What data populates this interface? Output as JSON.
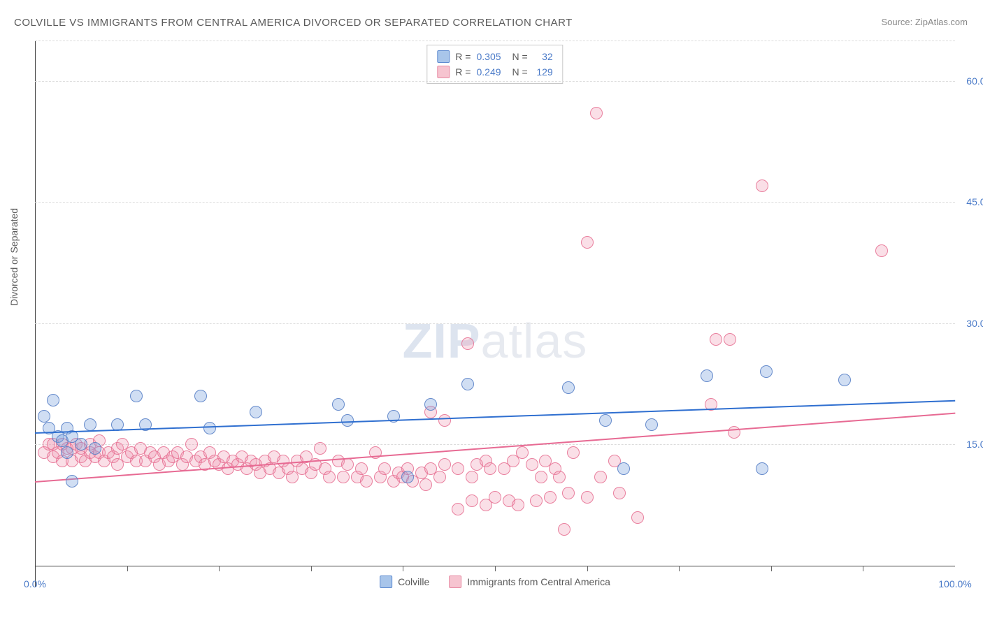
{
  "title": "COLVILLE VS IMMIGRANTS FROM CENTRAL AMERICA DIVORCED OR SEPARATED CORRELATION CHART",
  "source_prefix": "Source: ",
  "source_name": "ZipAtlas.com",
  "y_axis_label": "Divorced or Separated",
  "watermark_bold": "ZIP",
  "watermark_light": "atlas",
  "chart": {
    "xlim": [
      0,
      100
    ],
    "ylim": [
      0,
      65
    ],
    "x_ticks": [
      10,
      20,
      30,
      40,
      50,
      60,
      70,
      80,
      90
    ],
    "y_ticks": [
      {
        "v": 15,
        "label": "15.0%"
      },
      {
        "v": 30,
        "label": "30.0%"
      },
      {
        "v": 45,
        "label": "45.0%"
      },
      {
        "v": 60,
        "label": "60.0%"
      }
    ],
    "x_min_label": "0.0%",
    "x_max_label": "100.0%",
    "background_color": "#ffffff",
    "grid_color": "#dcdcdc",
    "axis_color": "#444444",
    "tick_label_color": "#4a7ac8",
    "marker_radius": 9,
    "series": {
      "blue": {
        "name": "Colville",
        "swatch_fill": "#a8c5ea",
        "swatch_stroke": "#5e8bd0",
        "marker_fill": "rgba(120,160,220,0.35)",
        "marker_stroke": "rgba(90,130,200,0.9)",
        "line_color": "#2f6fd0",
        "R": "0.305",
        "N": "32",
        "trend": {
          "x1": 0,
          "y1": 16.5,
          "x2": 100,
          "y2": 20.5
        },
        "points": [
          {
            "x": 1,
            "y": 18.5
          },
          {
            "x": 1.5,
            "y": 17
          },
          {
            "x": 2,
            "y": 20.5
          },
          {
            "x": 2.5,
            "y": 16
          },
          {
            "x": 3,
            "y": 15.5
          },
          {
            "x": 3.5,
            "y": 17
          },
          {
            "x": 3.5,
            "y": 14
          },
          {
            "x": 4,
            "y": 16
          },
          {
            "x": 4,
            "y": 10.5
          },
          {
            "x": 5,
            "y": 15
          },
          {
            "x": 6,
            "y": 17.5
          },
          {
            "x": 6.5,
            "y": 14.5
          },
          {
            "x": 9,
            "y": 17.5
          },
          {
            "x": 11,
            "y": 21
          },
          {
            "x": 12,
            "y": 17.5
          },
          {
            "x": 18,
            "y": 21
          },
          {
            "x": 19,
            "y": 17
          },
          {
            "x": 24,
            "y": 19
          },
          {
            "x": 33,
            "y": 20
          },
          {
            "x": 34,
            "y": 18
          },
          {
            "x": 39,
            "y": 18.5
          },
          {
            "x": 40.5,
            "y": 11
          },
          {
            "x": 43,
            "y": 20
          },
          {
            "x": 47,
            "y": 22.5
          },
          {
            "x": 58,
            "y": 22
          },
          {
            "x": 62,
            "y": 18
          },
          {
            "x": 64,
            "y": 12
          },
          {
            "x": 67,
            "y": 17.5
          },
          {
            "x": 73,
            "y": 23.5
          },
          {
            "x": 79,
            "y": 12
          },
          {
            "x": 79.5,
            "y": 24
          },
          {
            "x": 88,
            "y": 23
          }
        ]
      },
      "pink": {
        "name": "Immigrants from Central America",
        "swatch_fill": "#f6c4d0",
        "swatch_stroke": "#e78aa3",
        "marker_fill": "rgba(240,150,175,0.30)",
        "marker_stroke": "rgba(230,110,145,0.85)",
        "line_color": "#e76a93",
        "R": "0.249",
        "N": "129",
        "trend": {
          "x1": 0,
          "y1": 10.5,
          "x2": 100,
          "y2": 19
        },
        "points": [
          {
            "x": 1,
            "y": 14
          },
          {
            "x": 1.5,
            "y": 15
          },
          {
            "x": 2,
            "y": 13.5
          },
          {
            "x": 2,
            "y": 15
          },
          {
            "x": 2.5,
            "y": 14
          },
          {
            "x": 3,
            "y": 13
          },
          {
            "x": 3,
            "y": 15
          },
          {
            "x": 3.5,
            "y": 14.5
          },
          {
            "x": 4,
            "y": 13
          },
          {
            "x": 4,
            "y": 14.5
          },
          {
            "x": 4.5,
            "y": 15
          },
          {
            "x": 5,
            "y": 13.5
          },
          {
            "x": 5,
            "y": 14.5
          },
          {
            "x": 5.5,
            "y": 13
          },
          {
            "x": 6,
            "y": 14
          },
          {
            "x": 6,
            "y": 15
          },
          {
            "x": 6.5,
            "y": 13.5
          },
          {
            "x": 7,
            "y": 14
          },
          {
            "x": 7,
            "y": 15.5
          },
          {
            "x": 7.5,
            "y": 13
          },
          {
            "x": 8,
            "y": 14
          },
          {
            "x": 8.5,
            "y": 13.5
          },
          {
            "x": 9,
            "y": 14.5
          },
          {
            "x": 9,
            "y": 12.5
          },
          {
            "x": 9.5,
            "y": 15
          },
          {
            "x": 10,
            "y": 13.5
          },
          {
            "x": 10.5,
            "y": 14
          },
          {
            "x": 11,
            "y": 13
          },
          {
            "x": 11.5,
            "y": 14.5
          },
          {
            "x": 12,
            "y": 13
          },
          {
            "x": 12.5,
            "y": 14
          },
          {
            "x": 13,
            "y": 13.5
          },
          {
            "x": 13.5,
            "y": 12.5
          },
          {
            "x": 14,
            "y": 14
          },
          {
            "x": 14.5,
            "y": 13
          },
          {
            "x": 15,
            "y": 13.5
          },
          {
            "x": 15.5,
            "y": 14
          },
          {
            "x": 16,
            "y": 12.5
          },
          {
            "x": 16.5,
            "y": 13.5
          },
          {
            "x": 17,
            "y": 15
          },
          {
            "x": 17.5,
            "y": 13
          },
          {
            "x": 18,
            "y": 13.5
          },
          {
            "x": 18.5,
            "y": 12.5
          },
          {
            "x": 19,
            "y": 14
          },
          {
            "x": 19.5,
            "y": 13
          },
          {
            "x": 20,
            "y": 12.5
          },
          {
            "x": 20.5,
            "y": 13.5
          },
          {
            "x": 21,
            "y": 12
          },
          {
            "x": 21.5,
            "y": 13
          },
          {
            "x": 22,
            "y": 12.5
          },
          {
            "x": 22.5,
            "y": 13.5
          },
          {
            "x": 23,
            "y": 12
          },
          {
            "x": 23.5,
            "y": 13
          },
          {
            "x": 24,
            "y": 12.5
          },
          {
            "x": 24.5,
            "y": 11.5
          },
          {
            "x": 25,
            "y": 13
          },
          {
            "x": 25.5,
            "y": 12
          },
          {
            "x": 26,
            "y": 13.5
          },
          {
            "x": 26.5,
            "y": 11.5
          },
          {
            "x": 27,
            "y": 13
          },
          {
            "x": 27.5,
            "y": 12
          },
          {
            "x": 28,
            "y": 11
          },
          {
            "x": 28.5,
            "y": 13
          },
          {
            "x": 29,
            "y": 12
          },
          {
            "x": 29.5,
            "y": 13.5
          },
          {
            "x": 30,
            "y": 11.5
          },
          {
            "x": 30.5,
            "y": 12.5
          },
          {
            "x": 31,
            "y": 14.5
          },
          {
            "x": 31.5,
            "y": 12
          },
          {
            "x": 32,
            "y": 11
          },
          {
            "x": 33,
            "y": 13
          },
          {
            "x": 33.5,
            "y": 11
          },
          {
            "x": 34,
            "y": 12.5
          },
          {
            "x": 35,
            "y": 11
          },
          {
            "x": 35.5,
            "y": 12
          },
          {
            "x": 36,
            "y": 10.5
          },
          {
            "x": 37,
            "y": 14
          },
          {
            "x": 37.5,
            "y": 11
          },
          {
            "x": 38,
            "y": 12
          },
          {
            "x": 39,
            "y": 10.5
          },
          {
            "x": 39.5,
            "y": 11.5
          },
          {
            "x": 40,
            "y": 11
          },
          {
            "x": 40.5,
            "y": 12
          },
          {
            "x": 41,
            "y": 10.5
          },
          {
            "x": 42,
            "y": 11.5
          },
          {
            "x": 42.5,
            "y": 10
          },
          {
            "x": 43,
            "y": 12
          },
          {
            "x": 43,
            "y": 19
          },
          {
            "x": 44,
            "y": 11
          },
          {
            "x": 44.5,
            "y": 12.5
          },
          {
            "x": 44.5,
            "y": 18
          },
          {
            "x": 46,
            "y": 12
          },
          {
            "x": 46,
            "y": 7
          },
          {
            "x": 47,
            "y": 27.5
          },
          {
            "x": 47.5,
            "y": 8
          },
          {
            "x": 47.5,
            "y": 11
          },
          {
            "x": 48,
            "y": 12.5
          },
          {
            "x": 49,
            "y": 7.5
          },
          {
            "x": 49,
            "y": 13
          },
          {
            "x": 49.5,
            "y": 12
          },
          {
            "x": 50,
            "y": 8.5
          },
          {
            "x": 51,
            "y": 12
          },
          {
            "x": 51.5,
            "y": 8
          },
          {
            "x": 52,
            "y": 13
          },
          {
            "x": 52.5,
            "y": 7.5
          },
          {
            "x": 53,
            "y": 14
          },
          {
            "x": 54,
            "y": 12.5
          },
          {
            "x": 54.5,
            "y": 8
          },
          {
            "x": 55,
            "y": 11
          },
          {
            "x": 55.5,
            "y": 13
          },
          {
            "x": 56,
            "y": 8.5
          },
          {
            "x": 56.5,
            "y": 12
          },
          {
            "x": 57,
            "y": 11
          },
          {
            "x": 57.5,
            "y": 4.5
          },
          {
            "x": 58,
            "y": 9
          },
          {
            "x": 58.5,
            "y": 14
          },
          {
            "x": 60,
            "y": 8.5
          },
          {
            "x": 60,
            "y": 40
          },
          {
            "x": 61,
            "y": 56
          },
          {
            "x": 61.5,
            "y": 11
          },
          {
            "x": 63,
            "y": 13
          },
          {
            "x": 63.5,
            "y": 9
          },
          {
            "x": 65.5,
            "y": 6
          },
          {
            "x": 73.5,
            "y": 20
          },
          {
            "x": 74,
            "y": 28
          },
          {
            "x": 75.5,
            "y": 28
          },
          {
            "x": 76,
            "y": 16.5
          },
          {
            "x": 79,
            "y": 47
          },
          {
            "x": 92,
            "y": 39
          }
        ]
      }
    }
  }
}
